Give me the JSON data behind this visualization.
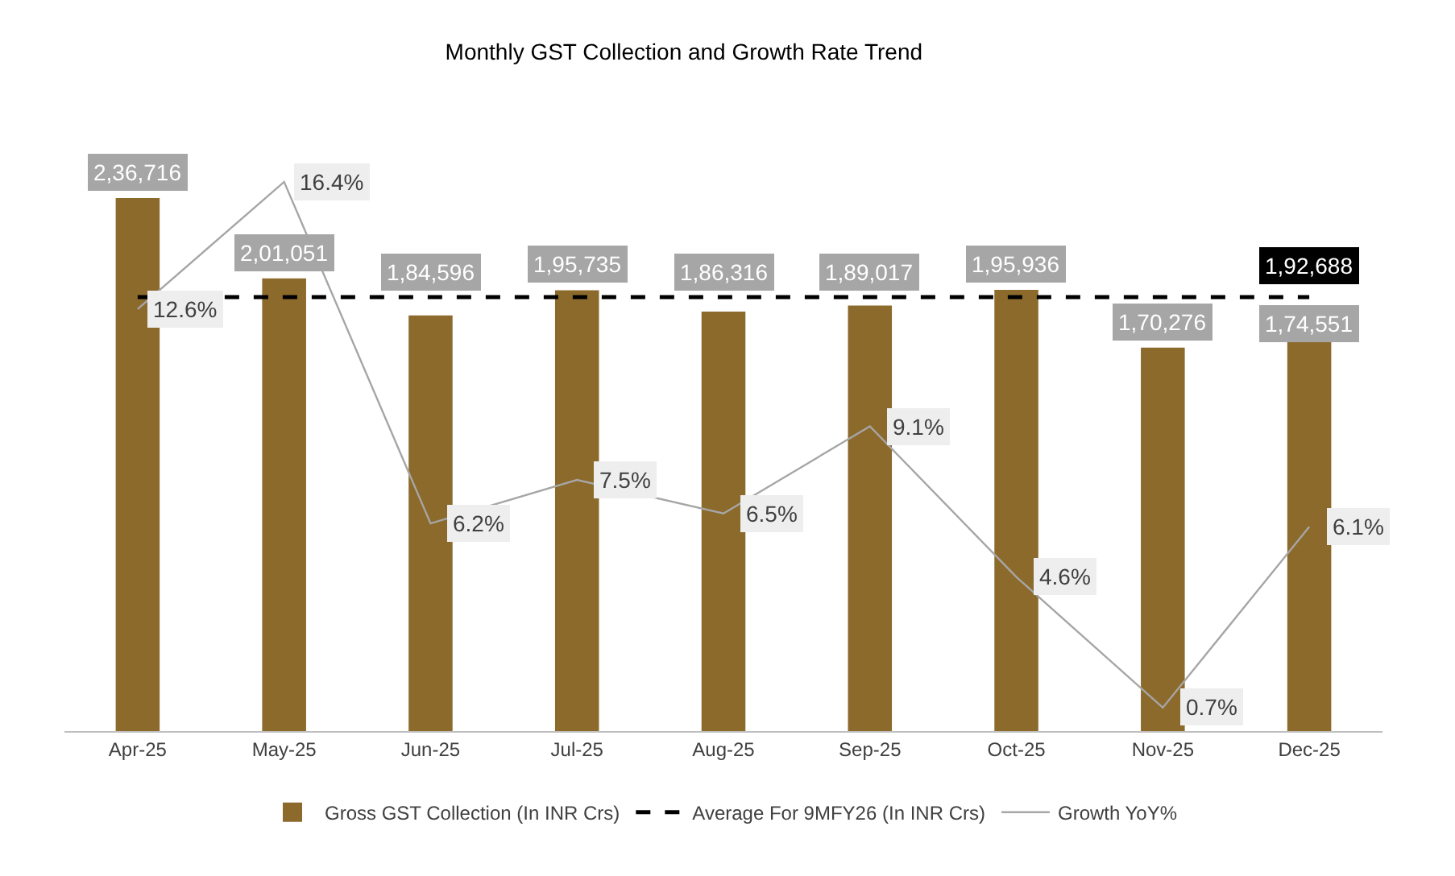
{
  "chart_data": {
    "type": "bar",
    "title": "Monthly GST Collection and Growth Rate Trend",
    "categories": [
      "Apr-25",
      "May-25",
      "Jun-25",
      "Jul-25",
      "Aug-25",
      "Sep-25",
      "Oct-25",
      "Nov-25",
      "Dec-25"
    ],
    "series": [
      {
        "name": "Gross GST Collection (In INR Crs)",
        "color": "#8c6a2c",
        "values": [
          236716,
          201051,
          184596,
          195735,
          186316,
          189017,
          195936,
          170276,
          174551
        ],
        "value_labels": [
          "2,36,716",
          "2,01,051",
          "1,84,596",
          "1,95,735",
          "1,86,316",
          "1,89,017",
          "1,95,936",
          "1,70,276",
          "1,74,551"
        ]
      },
      {
        "name": "Average For 9MFY26 (In INR Crs)",
        "type": "line",
        "line_style": "dashed",
        "color": "#000000",
        "values": [
          192688,
          192688,
          192688,
          192688,
          192688,
          192688,
          192688,
          192688,
          192688
        ],
        "value_labels": [
          null,
          null,
          null,
          null,
          null,
          null,
          null,
          null,
          "1,92,688"
        ]
      },
      {
        "name": "Growth YoY%",
        "type": "line",
        "axis": "y2",
        "line_style": "solid",
        "color": "#a6a6a6",
        "values": [
          12.6,
          16.4,
          6.2,
          7.5,
          6.5,
          9.1,
          4.6,
          0.7,
          6.1
        ],
        "value_labels": [
          "12.6%",
          "16.4%",
          "6.2%",
          "7.5%",
          "6.5%",
          "9.1%",
          "4.6%",
          "0.7%",
          "6.1%"
        ]
      }
    ],
    "tick_labels": "x",
    "grid": false,
    "marker": "none",
    "legend": "bottom"
  }
}
